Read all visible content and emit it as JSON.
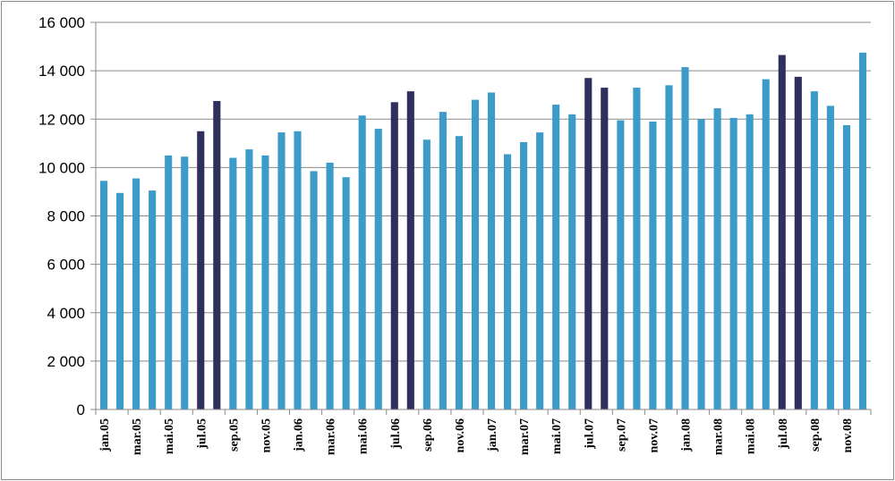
{
  "chart_data": {
    "type": "bar",
    "title": "",
    "xlabel": "",
    "ylabel": "",
    "ylim": [
      0,
      16000
    ],
    "yticks": [
      0,
      2000,
      4000,
      6000,
      8000,
      10000,
      12000,
      14000,
      16000
    ],
    "ytick_labels": [
      "0",
      "2 000",
      "4 000",
      "6 000",
      "8 000",
      "10 000",
      "12 000",
      "14 000",
      "16 000"
    ],
    "grid": true,
    "legend": "none",
    "colors": {
      "default": "#3d9bc9",
      "highlight": "#2f2f5e"
    },
    "categories": [
      "jan.05",
      "feb.05",
      "mar.05",
      "apr.05",
      "mai.05",
      "jun.05",
      "jul.05",
      "aug.05",
      "sep.05",
      "okt.05",
      "nov.05",
      "des.05",
      "jan.06",
      "feb.06",
      "mar.06",
      "apr.06",
      "mai.06",
      "jun.06",
      "jul.06",
      "aug.06",
      "sep.06",
      "okt.06",
      "nov.06",
      "des.06",
      "jan.07",
      "feb.07",
      "mar.07",
      "apr.07",
      "mai.07",
      "jun.07",
      "jul.07",
      "aug.07",
      "sep.07",
      "okt.07",
      "nov.07",
      "des.07",
      "jan.08",
      "feb.08",
      "mar.08",
      "apr.08",
      "mai.08",
      "jun.08",
      "jul.08",
      "aug.08",
      "sep.08",
      "okt.08",
      "nov.08",
      "des.08"
    ],
    "tick_labels": [
      "jan.05",
      "mar.05",
      "mai.05",
      "jul.05",
      "sep.05",
      "nov.05",
      "jan.06",
      "mar.06",
      "mai.06",
      "jul.06",
      "sep.06",
      "nov.06",
      "jan.07",
      "mar.07",
      "mai.07",
      "jul.07",
      "sep.07",
      "nov.07",
      "jan.08",
      "mar.08",
      "mai.08",
      "jul.08",
      "sep.08",
      "nov.08"
    ],
    "values": [
      9450,
      8950,
      9550,
      9050,
      10500,
      10450,
      11500,
      12750,
      10400,
      10750,
      10500,
      11450,
      11500,
      9850,
      10200,
      9600,
      12150,
      11600,
      12700,
      13150,
      11150,
      12300,
      11300,
      12800,
      13100,
      10550,
      11050,
      11450,
      12600,
      12200,
      13700,
      13300,
      11950,
      13300,
      11900,
      13400,
      14150,
      12000,
      12450,
      12050,
      12200,
      13650,
      14650,
      13750,
      13150,
      12550,
      11750,
      14750
    ],
    "highlighted": [
      "jul.05",
      "aug.05",
      "jul.06",
      "aug.06",
      "jul.07",
      "aug.07",
      "jul.08",
      "aug.08"
    ]
  }
}
